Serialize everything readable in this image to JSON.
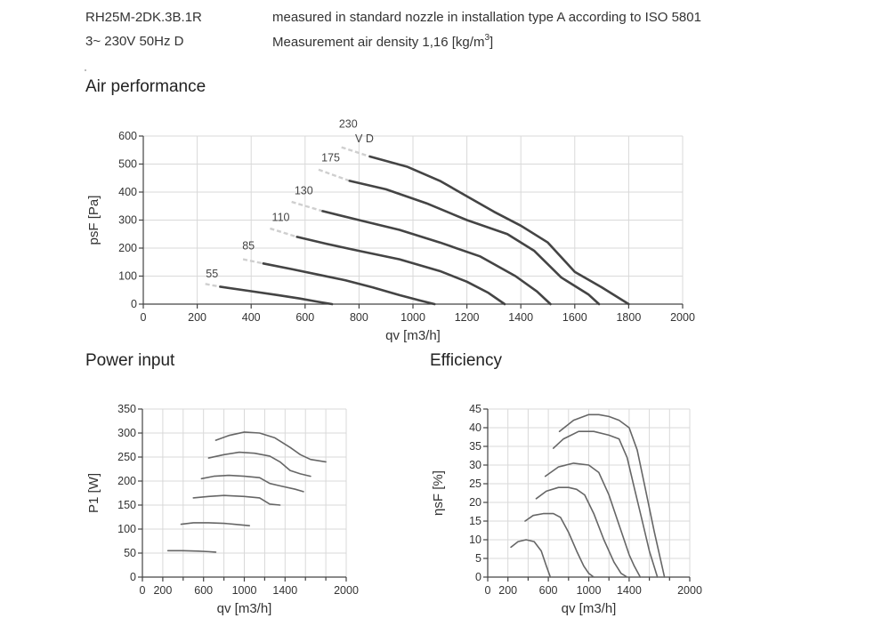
{
  "header": {
    "model": "RH25M-2DK.3B.1R",
    "description": "measured in standard nozzle in installation type A according to ISO 5801",
    "supply": "3~ 230V 50Hz D",
    "density_text": "Measurement air density 1,16 [kg/m",
    "density_sup": "3",
    "density_close": "]"
  },
  "sections": {
    "air": "Air performance",
    "power": "Power input",
    "efficiency": "Efficiency"
  },
  "chart_data": [
    {
      "id": "air",
      "type": "line",
      "title": "Air performance",
      "xlabel": "qv [m3/h]",
      "ylabel": "psF [Pa]",
      "xlim": [
        0,
        2000
      ],
      "ylim": [
        0,
        600
      ],
      "xticks": [
        0,
        200,
        400,
        600,
        800,
        1000,
        1200,
        1400,
        1600,
        1800,
        2000
      ],
      "yticks": [
        0,
        100,
        200,
        300,
        400,
        500,
        600
      ],
      "grid": true,
      "extra_labels": [
        {
          "text": "V D",
          "x": 820,
          "y": 590
        }
      ],
      "series": [
        {
          "name": "55",
          "label_at": [
            255,
            95
          ],
          "dash": [
            [
              230,
              72
            ],
            [
              285,
              62
            ]
          ],
          "x": [
            285,
            400,
            500,
            580,
            650,
            700
          ],
          "y": [
            62,
            46,
            32,
            20,
            8,
            0
          ]
        },
        {
          "name": "85",
          "label_at": [
            390,
            195
          ],
          "dash": [
            [
              370,
              160
            ],
            [
              445,
              145
            ]
          ],
          "x": [
            445,
            550,
            650,
            750,
            850,
            950,
            1030,
            1080
          ],
          "y": [
            145,
            125,
            105,
            85,
            60,
            32,
            12,
            0
          ]
        },
        {
          "name": "110",
          "label_at": [
            510,
            297
          ],
          "dash": [
            [
              470,
              270
            ],
            [
              570,
              240
            ]
          ],
          "x": [
            570,
            680,
            800,
            950,
            1100,
            1200,
            1280,
            1340
          ],
          "y": [
            240,
            215,
            190,
            160,
            118,
            80,
            40,
            0
          ]
        },
        {
          "name": "130",
          "label_at": [
            595,
            392
          ],
          "dash": [
            [
              550,
              365
            ],
            [
              665,
              332
            ]
          ],
          "x": [
            665,
            800,
            950,
            1100,
            1250,
            1380,
            1460,
            1510
          ],
          "y": [
            332,
            300,
            265,
            220,
            170,
            100,
            45,
            0
          ]
        },
        {
          "name": "175",
          "label_at": [
            695,
            510
          ],
          "dash": [
            [
              650,
              480
            ],
            [
              765,
              440
            ]
          ],
          "x": [
            765,
            900,
            1050,
            1200,
            1350,
            1450,
            1550,
            1650,
            1690
          ],
          "y": [
            440,
            410,
            360,
            300,
            250,
            190,
            95,
            35,
            0
          ]
        },
        {
          "name": "230",
          "label_at": [
            760,
            630
          ],
          "dash": [
            [
              735,
              560
            ],
            [
              840,
              527
            ]
          ],
          "x": [
            840,
            980,
            1100,
            1200,
            1300,
            1400,
            1500,
            1600,
            1700,
            1800
          ],
          "y": [
            527,
            490,
            440,
            385,
            330,
            280,
            220,
            115,
            60,
            0
          ]
        }
      ]
    },
    {
      "id": "power",
      "type": "line",
      "title": "Power input",
      "xlabel": "qv [m3/h]",
      "ylabel": "P1 [W]",
      "xlim": [
        0,
        2000
      ],
      "ylim": [
        0,
        350
      ],
      "xticks": [
        0,
        200,
        600,
        1000,
        1400,
        2000
      ],
      "xticks_minor": [
        400,
        800,
        1200,
        1600,
        1800
      ],
      "yticks": [
        0,
        50,
        100,
        150,
        200,
        250,
        300,
        350
      ],
      "grid": true,
      "series": [
        {
          "x": [
            250,
            400,
            550,
            650,
            720
          ],
          "y": [
            55,
            55,
            54,
            53,
            52
          ]
        },
        {
          "x": [
            380,
            500,
            650,
            800,
            900,
            1050
          ],
          "y": [
            110,
            113,
            113,
            112,
            110,
            107
          ]
        },
        {
          "x": [
            500,
            650,
            800,
            1000,
            1150,
            1250,
            1350
          ],
          "y": [
            165,
            168,
            170,
            168,
            165,
            152,
            150
          ]
        },
        {
          "x": [
            580,
            700,
            850,
            1000,
            1150,
            1250,
            1350,
            1500,
            1580
          ],
          "y": [
            205,
            210,
            212,
            210,
            207,
            195,
            190,
            183,
            178
          ]
        },
        {
          "x": [
            650,
            800,
            950,
            1100,
            1250,
            1350,
            1450,
            1550,
            1650
          ],
          "y": [
            248,
            255,
            260,
            258,
            252,
            240,
            222,
            215,
            210
          ]
        },
        {
          "x": [
            720,
            850,
            1000,
            1150,
            1300,
            1450,
            1550,
            1650,
            1800
          ],
          "y": [
            285,
            295,
            302,
            300,
            290,
            270,
            255,
            245,
            240
          ]
        }
      ]
    },
    {
      "id": "efficiency",
      "type": "line",
      "title": "Efficiency",
      "xlabel": "qv [m3/h]",
      "ylabel": "ηsF [%]",
      "xlim": [
        0,
        2000
      ],
      "ylim": [
        0,
        45
      ],
      "xticks": [
        0,
        200,
        600,
        1000,
        1400,
        2000
      ],
      "xticks_minor": [
        400,
        800,
        1200,
        1600,
        1800
      ],
      "yticks": [
        0,
        5,
        10,
        15,
        20,
        25,
        30,
        35,
        40,
        45
      ],
      "grid": true,
      "series": [
        {
          "x": [
            230,
            300,
            380,
            460,
            530,
            580,
            620
          ],
          "y": [
            8,
            9.5,
            10,
            9.5,
            7,
            3,
            0
          ]
        },
        {
          "x": [
            370,
            450,
            550,
            650,
            720,
            800,
            880,
            950,
            1000,
            1050
          ],
          "y": [
            15,
            16.5,
            17,
            17,
            16,
            12,
            7,
            3,
            1,
            0
          ]
        },
        {
          "x": [
            480,
            580,
            700,
            800,
            880,
            960,
            1050,
            1150,
            1250,
            1320,
            1380
          ],
          "y": [
            21,
            23,
            24,
            24,
            23.5,
            22,
            17,
            10,
            4,
            1,
            0
          ]
        },
        {
          "x": [
            570,
            700,
            850,
            1000,
            1100,
            1200,
            1300,
            1400,
            1450,
            1510
          ],
          "y": [
            27,
            29.5,
            30.5,
            30,
            28,
            22,
            14,
            6,
            3,
            0
          ]
        },
        {
          "x": [
            650,
            750,
            900,
            1050,
            1200,
            1300,
            1380,
            1450,
            1530,
            1600,
            1680
          ],
          "y": [
            34.5,
            37,
            39,
            39,
            38,
            37,
            32,
            24,
            15,
            7,
            0
          ]
        },
        {
          "x": [
            710,
            850,
            1000,
            1100,
            1200,
            1300,
            1400,
            1480,
            1550,
            1650,
            1750
          ],
          "y": [
            39,
            42,
            43.5,
            43.5,
            43,
            42,
            40,
            34,
            25,
            12,
            0
          ]
        }
      ]
    }
  ]
}
